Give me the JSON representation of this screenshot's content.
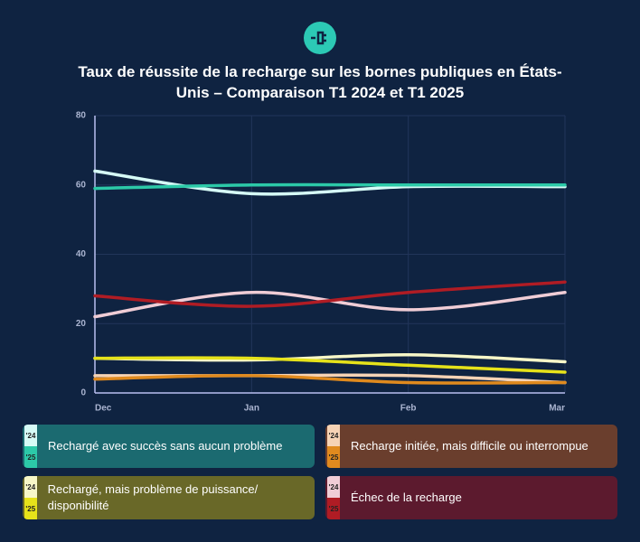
{
  "chart_data": {
    "type": "line",
    "title": "Taux de réussite de la recharge sur les bornes publiques en États-Unis – Comparaison T1 2024 et T1 2025",
    "categories": [
      "Dec",
      "Jan",
      "Feb",
      "Mar"
    ],
    "ylim": [
      0,
      80
    ],
    "yticks": [
      0,
      20,
      40,
      60,
      80
    ],
    "grid": true,
    "groups": [
      {
        "name": "Rechargé avec succès sans aucun problème",
        "color": "#1b6a70",
        "series": [
          {
            "name": "'24",
            "color": "#d6fbf6",
            "values": [
              64,
              57.5,
              59.5,
              59.5
            ]
          },
          {
            "name": "'25",
            "color": "#2cc9a8",
            "values": [
              59,
              60,
              60,
              60
            ]
          }
        ]
      },
      {
        "name": "Recharge initiée, mais difficile ou interrompue",
        "color": "#6a3e2d",
        "series": [
          {
            "name": "'24",
            "color": "#f6d3b5",
            "values": [
              5,
              5,
              5,
              3
            ]
          },
          {
            "name": "'25",
            "color": "#e08a1e",
            "values": [
              4,
              5,
              3,
              3
            ]
          }
        ]
      },
      {
        "name": "Rechargé, mais problème de puissance/ disponibilité",
        "color": "#696828",
        "series": [
          {
            "name": "'24",
            "color": "#f7f7c8",
            "values": [
              10,
              9.5,
              11,
              9
            ]
          },
          {
            "name": "'25",
            "color": "#e6e21a",
            "values": [
              10,
              10,
              8,
              6
            ]
          }
        ]
      },
      {
        "name": "Échec de la recharge",
        "color": "#5c1a2e",
        "series": [
          {
            "name": "'24",
            "color": "#f0cdd6",
            "values": [
              22,
              29,
              24,
              29
            ]
          },
          {
            "name": "'25",
            "color": "#b01c24",
            "values": [
              28,
              25,
              29,
              32
            ]
          }
        ]
      }
    ]
  }
}
